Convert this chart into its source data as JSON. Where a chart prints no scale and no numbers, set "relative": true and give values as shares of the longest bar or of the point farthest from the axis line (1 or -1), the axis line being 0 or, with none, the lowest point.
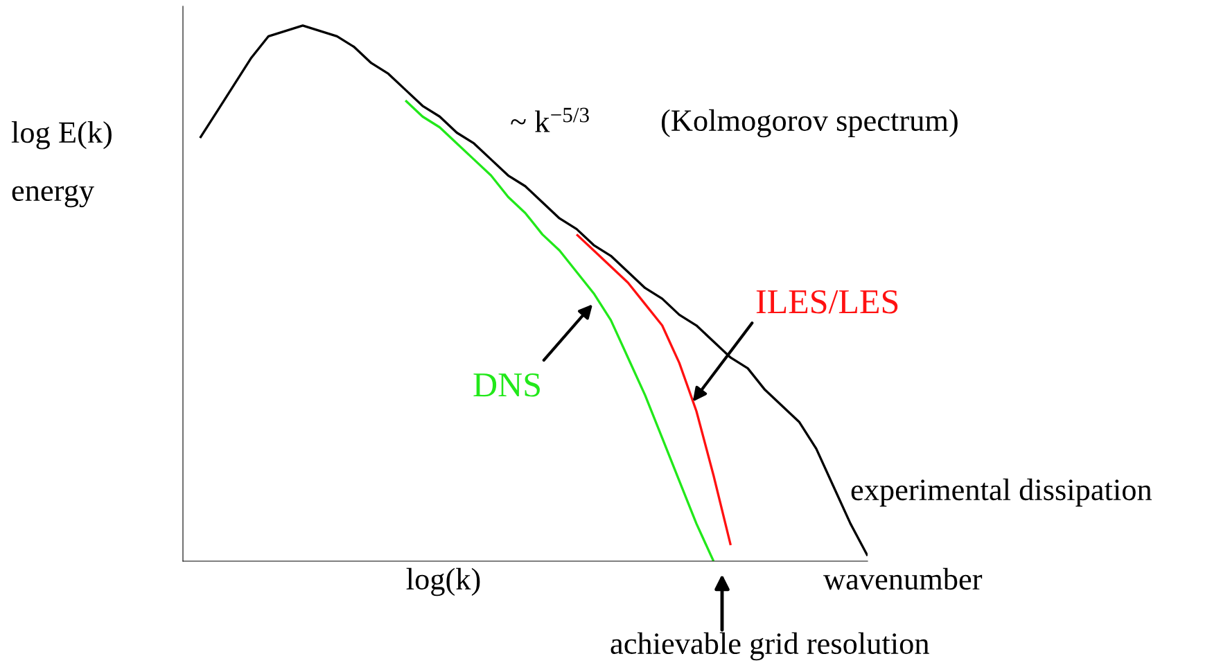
{
  "chart_data": {
    "type": "line",
    "relative": true,
    "ylabel": "log E(k)\n\nenergy",
    "xlabel": "log(k)",
    "categories": [
      null,
      null,
      null,
      null,
      null,
      null,
      null,
      null,
      null,
      null,
      null,
      null,
      null,
      null,
      null,
      null,
      null,
      null,
      null,
      null,
      null,
      null,
      null,
      null,
      null,
      null,
      null,
      null,
      null,
      null,
      null,
      null,
      null,
      null,
      null,
      null,
      null,
      null,
      null,
      null,
      null
    ],
    "series": [
      {
        "color": "#000000",
        "values": [
          null,
          0.79,
          0.84,
          0.89,
          0.94,
          0.98,
          0.99,
          1.0,
          0.99,
          0.98,
          0.96,
          0.93,
          0.91,
          0.88,
          0.85,
          0.83,
          0.8,
          0.78,
          0.75,
          0.72,
          0.7,
          0.67,
          0.64,
          0.62,
          0.59,
          0.57,
          0.54,
          0.51,
          0.49,
          0.46,
          0.44,
          0.41,
          0.38,
          0.36,
          0.32,
          0.29,
          0.26,
          0.21,
          0.14,
          0.07,
          0.01
        ]
      },
      {
        "name": "DNS",
        "color": "#22e81a",
        "values": [
          null,
          null,
          null,
          null,
          null,
          null,
          null,
          null,
          null,
          null,
          null,
          null,
          null,
          0.86,
          0.83,
          0.81,
          0.78,
          0.75,
          0.72,
          0.68,
          0.65,
          0.61,
          0.58,
          0.54,
          0.5,
          0.45,
          0.38,
          0.31,
          0.23,
          0.15,
          0.07,
          0.0,
          null,
          null,
          null,
          null,
          null,
          null,
          null,
          null,
          null
        ]
      },
      {
        "name": "ILES/LES",
        "color": "#ff1111",
        "values": [
          null,
          null,
          null,
          null,
          null,
          null,
          null,
          null,
          null,
          null,
          null,
          null,
          null,
          null,
          null,
          null,
          null,
          null,
          null,
          null,
          null,
          null,
          null,
          0.61,
          0.58,
          0.55,
          0.52,
          0.48,
          0.44,
          0.37,
          0.28,
          0.16,
          0.03,
          null,
          null,
          null,
          null,
          null,
          null,
          null,
          null
        ]
      }
    ],
    "annotations": [
      "~ k$^{−5/3}$",
      "(Kolmogorov spectrum)",
      "experimental dissipation",
      "wavenumber",
      "achievable grid resolution"
    ]
  }
}
